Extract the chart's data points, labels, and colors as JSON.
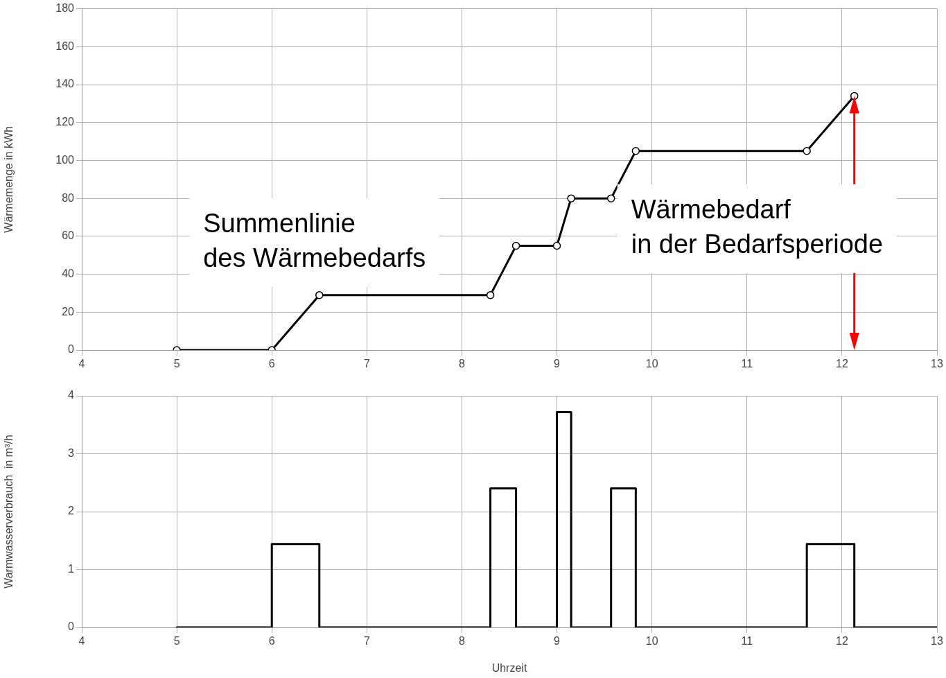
{
  "chart_data": [
    {
      "type": "line",
      "ylabel": "Wärmemenge in kWh",
      "x": [
        5,
        6,
        6.5,
        8.3,
        8.57,
        9,
        9.15,
        9.57,
        9.83,
        11.63,
        12.13
      ],
      "series": [
        {
          "color": "#000000",
          "values": [
            0,
            0,
            29,
            29,
            55,
            55,
            80,
            80,
            105,
            105,
            134
          ]
        }
      ],
      "xlim": [
        4,
        13
      ],
      "xticks": [
        4,
        5,
        6,
        7,
        8,
        9,
        10,
        11,
        12,
        13
      ],
      "ylim": [
        0,
        180
      ],
      "yticks": [
        0,
        20,
        40,
        60,
        80,
        100,
        120,
        140,
        160,
        180
      ],
      "grid": true,
      "marker": "circle",
      "line_style": "solid",
      "annotations": [
        "Summenlinie\ndes Wärmebedarfs",
        "Wärmebedarf\nin der Bedarfsperiode"
      ]
    },
    {
      "type": "step",
      "xlabel": "Uhrzeit",
      "ylabel": "Warmwasserverbrauch  in m³/h",
      "x": [
        5,
        6,
        6.5,
        8.3,
        8.57,
        9,
        9.15,
        9.57,
        9.83,
        11.63,
        12.13,
        13
      ],
      "series": [
        {
          "color": "#000000",
          "values": [
            0,
            1.44,
            0,
            2.4,
            0,
            3.72,
            0,
            2.4,
            0,
            1.44,
            0,
            0
          ]
        }
      ],
      "xlim": [
        4,
        13
      ],
      "xticks": [
        4,
        5,
        6,
        7,
        8,
        9,
        10,
        11,
        12,
        13
      ],
      "ylim": [
        0,
        4
      ],
      "yticks": [
        0,
        1,
        2,
        3,
        4
      ],
      "grid": true,
      "line_style": "solid"
    }
  ]
}
